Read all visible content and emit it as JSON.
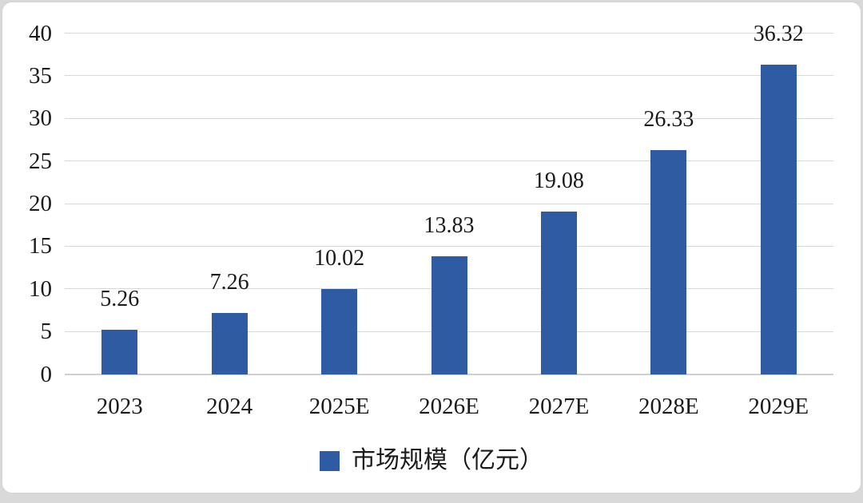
{
  "page": {
    "background_color": "#d9d9d9",
    "card_background_color": "#ffffff",
    "card_border_color": "#d7d7d7"
  },
  "chart_data": {
    "type": "bar",
    "categories": [
      "2023",
      "2024",
      "2025E",
      "2026E",
      "2027E",
      "2028E",
      "2029E"
    ],
    "values": [
      5.26,
      7.26,
      10.02,
      13.83,
      19.08,
      26.33,
      36.32
    ],
    "value_labels": [
      "5.26",
      "7.26",
      "10.02",
      "13.83",
      "19.08",
      "26.33",
      "36.32"
    ],
    "series_name": "市场规模（亿元）",
    "title": "",
    "xlabel": "",
    "ylabel": "",
    "ylim": [
      0,
      40
    ],
    "yticks": [
      0,
      5,
      10,
      15,
      20,
      25,
      30,
      35,
      40
    ],
    "grid": true,
    "legend_position": "bottom",
    "bar_color": "#2f5ba3",
    "gridline_color": "#d9d9d9",
    "axis_line_color": "#ccd1d8",
    "text_color": "#1b1b1b"
  },
  "legend": {
    "label": "市场规模（亿元）",
    "swatch_color": "#2f5ba3"
  }
}
